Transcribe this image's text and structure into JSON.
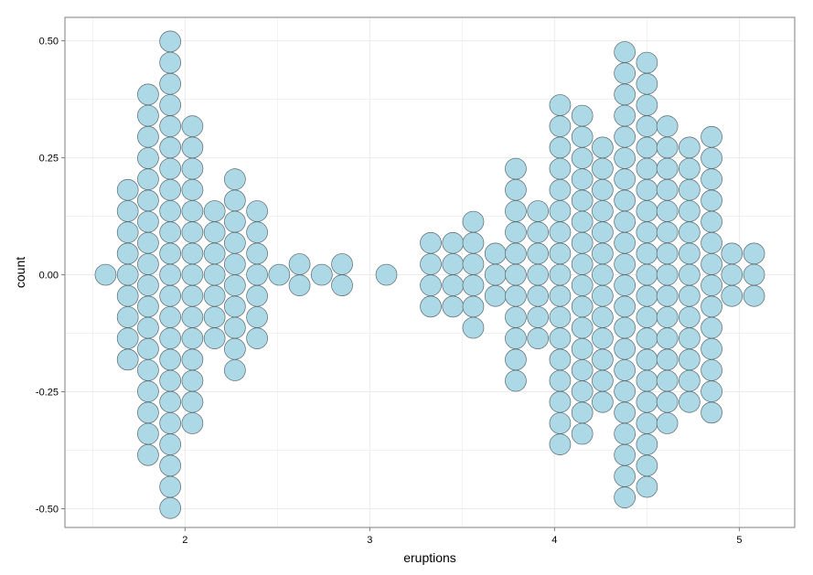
{
  "chart_data": {
    "type": "scatter",
    "subtype": "centered dotplot (binwidth 0.1)",
    "title": "",
    "xlabel": "eruptions",
    "ylabel": "count",
    "xlim": [
      1.35,
      5.3
    ],
    "ylim": [
      -0.54,
      0.55
    ],
    "x_ticks": [
      2,
      3,
      4,
      5
    ],
    "x_tick_labels": [
      "2",
      "3",
      "4",
      "5"
    ],
    "y_ticks": [
      0.5,
      0.25,
      0.0,
      -0.25,
      -0.5
    ],
    "y_tick_labels": [
      "0.50",
      "0.25",
      "0.00",
      "-0.25",
      "-0.50"
    ],
    "grid": true,
    "legend": "none",
    "dot_fill": "#add8e6",
    "dot_stroke": "#5a6a70",
    "panel_border": "#7f7f7f",
    "grid_color": "#ebebeb",
    "stacks": [
      {
        "x": 1.57,
        "count": 1
      },
      {
        "x": 1.69,
        "count": 9
      },
      {
        "x": 1.8,
        "count": 18
      },
      {
        "x": 1.92,
        "count": 23
      },
      {
        "x": 2.04,
        "count": 15
      },
      {
        "x": 2.16,
        "count": 7
      },
      {
        "x": 2.27,
        "count": 10
      },
      {
        "x": 2.39,
        "count": 7
      },
      {
        "x": 2.51,
        "count": 1
      },
      {
        "x": 2.62,
        "count": 2
      },
      {
        "x": 2.74,
        "count": 1
      },
      {
        "x": 2.85,
        "count": 2
      },
      {
        "x": 3.09,
        "count": 1
      },
      {
        "x": 3.33,
        "count": 4
      },
      {
        "x": 3.45,
        "count": 4
      },
      {
        "x": 3.56,
        "count": 6
      },
      {
        "x": 3.68,
        "count": 3
      },
      {
        "x": 3.79,
        "count": 11
      },
      {
        "x": 3.91,
        "count": 7
      },
      {
        "x": 4.03,
        "count": 17
      },
      {
        "x": 4.15,
        "count": 16
      },
      {
        "x": 4.26,
        "count": 13
      },
      {
        "x": 4.38,
        "count": 22
      },
      {
        "x": 4.5,
        "count": 21
      },
      {
        "x": 4.61,
        "count": 15
      },
      {
        "x": 4.73,
        "count": 13
      },
      {
        "x": 4.85,
        "count": 14
      },
      {
        "x": 4.96,
        "count": 3
      },
      {
        "x": 5.08,
        "count": 3
      }
    ]
  }
}
